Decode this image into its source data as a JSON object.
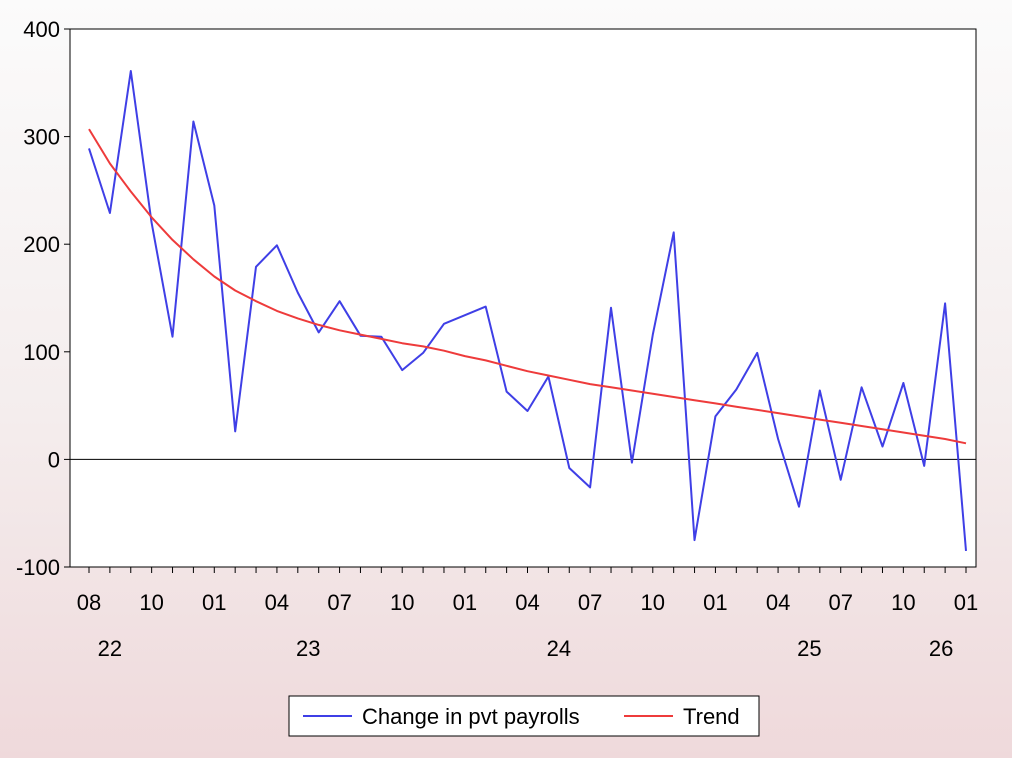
{
  "chart_data": {
    "type": "line",
    "title": "",
    "xlabel": "",
    "ylabel": "",
    "ylim": [
      -100,
      400
    ],
    "yticks": [
      -100,
      0,
      100,
      200,
      300,
      400
    ],
    "x_month_labels": [
      "08",
      "10",
      "01",
      "04",
      "07",
      "10",
      "01",
      "04",
      "07",
      "10",
      "01",
      "04",
      "07",
      "10",
      "01"
    ],
    "x_year_labels": [
      "22",
      "23",
      "24",
      "25",
      "26"
    ],
    "start": "2022-08",
    "end": "2026-01",
    "grid": false,
    "legend_position": "bottom",
    "zero_line": true,
    "series": [
      {
        "name": "Change in pvt payrolls",
        "color": "#3f3fe6",
        "values": [
          289,
          229,
          361,
          220,
          114,
          314,
          236,
          26,
          179,
          199,
          155,
          118,
          147,
          115,
          114,
          83,
          99,
          126,
          134,
          142,
          63,
          45,
          77,
          -8,
          -26,
          141,
          -3,
          116,
          211,
          -75,
          40,
          65,
          99,
          19,
          -44,
          64,
          -19,
          67,
          12,
          71,
          -6,
          145,
          -85
        ]
      },
      {
        "name": "Trend",
        "color": "#ee3b3b",
        "values": [
          307,
          275,
          249,
          225,
          204,
          186,
          170,
          157,
          147,
          138,
          131,
          125,
          120,
          116,
          112,
          108,
          105,
          101,
          96,
          92,
          87,
          82,
          78,
          74,
          70,
          67,
          64,
          61,
          58,
          55,
          52,
          49,
          46,
          43,
          40,
          37,
          34,
          31,
          28,
          25,
          22,
          19,
          15
        ]
      }
    ]
  }
}
